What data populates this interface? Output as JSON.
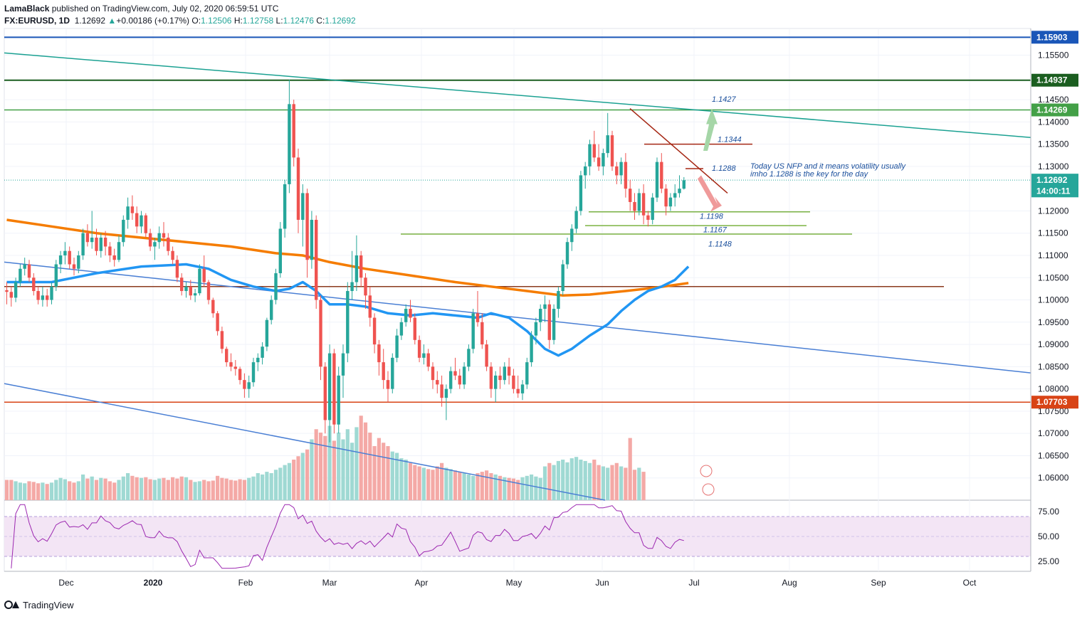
{
  "header": {
    "author": "LamaBlack",
    "published": "published on TradingView.com, July 02, 2020 06:59:51 UTC",
    "symbol": "FX:EURUSD, 1D",
    "last": "1.12692",
    "change": "+0.00186 (+0.17%)",
    "o_label": "O:",
    "o": "1.12506",
    "h_label": "H:",
    "h": "1.12758",
    "l_label": "L:",
    "l": "1.12476",
    "c_label": "C:",
    "c": "1.12692"
  },
  "footer": {
    "brand": "TradingView"
  },
  "colors": {
    "up": "#26a69a",
    "down": "#ef5350",
    "ma_fast": "#2196f3",
    "ma_slow": "#f57c00",
    "rsi": "#9c27b0",
    "rsi_band": "#f3e5f5",
    "trend_teal": "#1ba192",
    "trend_blue": "#4a7fd4",
    "level_green": "#2e7d32",
    "level_red": "#b23c17",
    "top_blue": "#1a56b8"
  },
  "chart_data": {
    "type": "candlestick",
    "price_ylim": [
      1.055,
      1.161
    ],
    "x_tick_labels": [
      "Dec",
      "2020",
      "Feb",
      "Mar",
      "Apr",
      "May",
      "Jun",
      "Jul",
      "Aug",
      "Sep",
      "Oct"
    ],
    "y_tick_labels": [
      "1.15500",
      "1.14500",
      "1.14000",
      "1.13500",
      "1.13000",
      "1.12000",
      "1.11500",
      "1.11000",
      "1.10500",
      "1.10000",
      "1.09500",
      "1.09000",
      "1.08500",
      "1.08000",
      "1.07500",
      "1.07000",
      "1.06500",
      "1.06000"
    ],
    "price_badges": [
      {
        "label": "1.15903",
        "value": 1.15903,
        "color": "#1a56b8"
      },
      {
        "label": "1.14937",
        "value": 1.14937,
        "color": "#1b5e20"
      },
      {
        "label": "1.14269",
        "value": 1.14269,
        "color": "#43a047"
      },
      {
        "label": "1.12692",
        "value": 1.12692,
        "color": "#26a69a"
      },
      {
        "label": "14:00:11",
        "value": 1.1245,
        "color": "#26a69a"
      },
      {
        "label": "1.07703",
        "value": 1.07703,
        "color": "#d84315"
      }
    ],
    "annotations": {
      "levels": [
        "1.1427",
        "1.1344",
        "1.1288",
        "1.1198",
        "1.1167",
        "1.1148"
      ],
      "note_line1": "Today US NFP and it means volatility usually",
      "note_line2": "imho 1.1288 is the key for the day"
    },
    "rsi": {
      "ylim": [
        15,
        85
      ],
      "tick_labels": [
        "75.00",
        "50.00",
        "25.00"
      ],
      "band": [
        30,
        70
      ]
    },
    "month_starts": [
      0,
      23,
      44,
      64,
      86,
      108,
      129,
      150
    ],
    "candles": [
      [
        1.1022,
        1.104,
        1.099,
        1.1018
      ],
      [
        1.1018,
        1.103,
        1.0985,
        1.1005
      ],
      [
        1.1005,
        1.105,
        1.0995,
        1.104
      ],
      [
        1.104,
        1.108,
        1.103,
        1.107
      ],
      [
        1.107,
        1.1095,
        1.1055,
        1.108
      ],
      [
        1.108,
        1.109,
        1.104,
        1.105
      ],
      [
        1.105,
        1.106,
        1.101,
        1.102
      ],
      [
        1.102,
        1.103,
        1.099,
        1.1
      ],
      [
        1.1,
        1.103,
        1.0985,
        1.101
      ],
      [
        1.101,
        1.1025,
        1.0985,
        1.1
      ],
      [
        1.1,
        1.104,
        1.099,
        1.103
      ],
      [
        1.103,
        1.109,
        1.102,
        1.108
      ],
      [
        1.108,
        1.111,
        1.106,
        1.11
      ],
      [
        1.11,
        1.113,
        1.108,
        1.111
      ],
      [
        1.111,
        1.112,
        1.107,
        1.108
      ],
      [
        1.108,
        1.1095,
        1.1055,
        1.107
      ],
      [
        1.107,
        1.111,
        1.106,
        1.11
      ],
      [
        1.11,
        1.116,
        1.109,
        1.115
      ],
      [
        1.115,
        1.117,
        1.112,
        1.113
      ],
      [
        1.113,
        1.12,
        1.1115,
        1.114
      ],
      [
        1.114,
        1.116,
        1.11,
        1.111
      ],
      [
        1.111,
        1.115,
        1.1095,
        1.114
      ],
      [
        1.114,
        1.1155,
        1.11,
        1.112
      ],
      [
        1.112,
        1.113,
        1.1085,
        1.11
      ],
      [
        1.11,
        1.1115,
        1.1075,
        1.109
      ],
      [
        1.109,
        1.1145,
        1.1085,
        1.113
      ],
      [
        1.113,
        1.119,
        1.112,
        1.118
      ],
      [
        1.118,
        1.123,
        1.116,
        1.121
      ],
      [
        1.121,
        1.1235,
        1.118,
        1.1195
      ],
      [
        1.1195,
        1.121,
        1.115,
        1.1165
      ],
      [
        1.1165,
        1.12,
        1.115,
        1.119
      ],
      [
        1.119,
        1.1195,
        1.114,
        1.115
      ],
      [
        1.115,
        1.116,
        1.111,
        1.112
      ],
      [
        1.112,
        1.114,
        1.109,
        1.113
      ],
      [
        1.113,
        1.1165,
        1.1115,
        1.115
      ],
      [
        1.115,
        1.1175,
        1.112,
        1.114
      ],
      [
        1.114,
        1.115,
        1.11,
        1.111
      ],
      [
        1.111,
        1.112,
        1.108,
        1.109
      ],
      [
        1.109,
        1.11,
        1.104,
        1.105
      ],
      [
        1.105,
        1.106,
        1.101,
        1.102
      ],
      [
        1.102,
        1.104,
        1.1005,
        1.103
      ],
      [
        1.103,
        1.1045,
        1.1,
        1.101
      ],
      [
        1.101,
        1.1025,
        1.0995,
        1.1015
      ],
      [
        1.1015,
        1.108,
        1.101,
        1.107
      ],
      [
        1.107,
        1.11,
        1.103,
        1.104
      ],
      [
        1.104,
        1.1045,
        1.099,
        1.1
      ],
      [
        1.1,
        1.1005,
        1.096,
        1.097
      ],
      [
        1.097,
        1.0975,
        1.092,
        1.093
      ],
      [
        1.093,
        1.094,
        1.088,
        1.089
      ],
      [
        1.089,
        1.0895,
        1.085,
        1.086
      ],
      [
        1.086,
        1.088,
        1.084,
        1.085
      ],
      [
        1.085,
        1.0865,
        1.083,
        1.0845
      ],
      [
        1.0845,
        1.085,
        1.081,
        1.082
      ],
      [
        1.082,
        1.0835,
        1.078,
        1.08
      ],
      [
        1.08,
        1.083,
        1.078,
        1.0815
      ],
      [
        1.0815,
        1.087,
        1.0805,
        1.086
      ],
      [
        1.086,
        1.088,
        1.084,
        1.087
      ],
      [
        1.087,
        1.0905,
        1.0855,
        1.0895
      ],
      [
        1.0895,
        1.096,
        1.0885,
        1.0955
      ],
      [
        1.0955,
        1.101,
        1.0945,
        1.1
      ],
      [
        1.1,
        1.107,
        1.099,
        1.106
      ],
      [
        1.106,
        1.1175,
        1.105,
        1.116
      ],
      [
        1.116,
        1.127,
        1.114,
        1.126
      ],
      [
        1.126,
        1.1495,
        1.124,
        1.144
      ],
      [
        1.144,
        1.145,
        1.13,
        1.132
      ],
      [
        1.132,
        1.134,
        1.115,
        1.118
      ],
      [
        1.118,
        1.126,
        1.112,
        1.124
      ],
      [
        1.124,
        1.125,
        1.105,
        1.109
      ],
      [
        1.109,
        1.12,
        1.107,
        1.118
      ],
      [
        1.118,
        1.119,
        1.098,
        1.1
      ],
      [
        1.1,
        1.101,
        1.082,
        1.085
      ],
      [
        1.085,
        1.086,
        1.07,
        1.073
      ],
      [
        1.073,
        1.09,
        1.068,
        1.088
      ],
      [
        1.088,
        1.089,
        1.07,
        1.072
      ],
      [
        1.072,
        1.085,
        1.07,
        1.083
      ],
      [
        1.083,
        1.09,
        1.078,
        1.088
      ],
      [
        1.088,
        1.104,
        1.086,
        1.102
      ],
      [
        1.102,
        1.111,
        1.1,
        1.104
      ],
      [
        1.104,
        1.1145,
        1.102,
        1.11
      ],
      [
        1.11,
        1.111,
        1.103,
        1.105
      ],
      [
        1.105,
        1.106,
        1.098,
        1.101
      ],
      [
        1.101,
        1.103,
        1.094,
        1.096
      ],
      [
        1.096,
        1.097,
        1.088,
        1.09
      ],
      [
        1.09,
        1.091,
        1.083,
        1.086
      ],
      [
        1.086,
        1.089,
        1.08,
        1.082
      ],
      [
        1.082,
        1.084,
        1.077,
        1.08
      ],
      [
        1.08,
        1.088,
        1.079,
        1.087
      ],
      [
        1.087,
        1.0935,
        1.086,
        1.092
      ],
      [
        1.092,
        1.096,
        1.091,
        1.095
      ],
      [
        1.095,
        1.099,
        1.094,
        1.098
      ],
      [
        1.098,
        1.1,
        1.095,
        1.096
      ],
      [
        1.096,
        1.097,
        1.09,
        1.091
      ],
      [
        1.091,
        1.092,
        1.086,
        1.087
      ],
      [
        1.087,
        1.09,
        1.0855,
        1.088
      ],
      [
        1.088,
        1.089,
        1.084,
        1.085
      ],
      [
        1.085,
        1.086,
        1.08,
        1.082
      ],
      [
        1.082,
        1.084,
        1.079,
        1.081
      ],
      [
        1.081,
        1.083,
        1.076,
        1.078
      ],
      [
        1.078,
        1.081,
        1.073,
        1.08
      ],
      [
        1.08,
        1.085,
        1.079,
        1.084
      ],
      [
        1.084,
        1.087,
        1.082,
        1.083
      ],
      [
        1.083,
        1.0845,
        1.08,
        1.081
      ],
      [
        1.081,
        1.086,
        1.08,
        1.085
      ],
      [
        1.085,
        1.09,
        1.084,
        1.089
      ],
      [
        1.089,
        1.098,
        1.088,
        1.097
      ],
      [
        1.097,
        1.102,
        1.094,
        1.095
      ],
      [
        1.095,
        1.097,
        1.089,
        1.09
      ],
      [
        1.09,
        1.091,
        1.084,
        1.085
      ],
      [
        1.085,
        1.086,
        1.078,
        1.08
      ],
      [
        1.08,
        1.084,
        1.077,
        1.083
      ],
      [
        1.083,
        1.085,
        1.08,
        1.082
      ],
      [
        1.082,
        1.086,
        1.081,
        1.085
      ],
      [
        1.085,
        1.087,
        1.081,
        1.083
      ],
      [
        1.083,
        1.0845,
        1.079,
        1.08
      ],
      [
        1.08,
        1.083,
        1.078,
        1.079
      ],
      [
        1.079,
        1.082,
        1.0775,
        1.081
      ],
      [
        1.081,
        1.087,
        1.08,
        1.086
      ],
      [
        1.086,
        1.093,
        1.085,
        1.092
      ],
      [
        1.092,
        1.096,
        1.09,
        1.095
      ],
      [
        1.095,
        1.099,
        1.093,
        1.098
      ],
      [
        1.098,
        1.101,
        1.095,
        1.099
      ],
      [
        1.099,
        1.1,
        1.089,
        1.091
      ],
      [
        1.091,
        1.099,
        1.09,
        1.098
      ],
      [
        1.098,
        1.103,
        1.096,
        1.102
      ],
      [
        1.102,
        1.109,
        1.101,
        1.108
      ],
      [
        1.108,
        1.114,
        1.107,
        1.113
      ],
      [
        1.113,
        1.117,
        1.111,
        1.116
      ],
      [
        1.116,
        1.121,
        1.115,
        1.12
      ],
      [
        1.12,
        1.129,
        1.119,
        1.128
      ],
      [
        1.128,
        1.131,
        1.125,
        1.13
      ],
      [
        1.13,
        1.136,
        1.128,
        1.135
      ],
      [
        1.135,
        1.138,
        1.131,
        1.132
      ],
      [
        1.132,
        1.135,
        1.129,
        1.13
      ],
      [
        1.13,
        1.134,
        1.128,
        1.133
      ],
      [
        1.133,
        1.142,
        1.132,
        1.137
      ],
      [
        1.137,
        1.138,
        1.129,
        1.13
      ],
      [
        1.13,
        1.131,
        1.126,
        1.128
      ],
      [
        1.128,
        1.132,
        1.126,
        1.131
      ],
      [
        1.131,
        1.133,
        1.123,
        1.125
      ],
      [
        1.125,
        1.127,
        1.12,
        1.122
      ],
      [
        1.122,
        1.124,
        1.118,
        1.12
      ],
      [
        1.12,
        1.125,
        1.119,
        1.124
      ],
      [
        1.124,
        1.126,
        1.117,
        1.119
      ],
      [
        1.119,
        1.12,
        1.1165,
        1.118
      ],
      [
        1.118,
        1.124,
        1.117,
        1.123
      ],
      [
        1.123,
        1.132,
        1.122,
        1.131
      ],
      [
        1.131,
        1.133,
        1.124,
        1.125
      ],
      [
        1.125,
        1.126,
        1.119,
        1.121
      ],
      [
        1.121,
        1.124,
        1.12,
        1.123
      ],
      [
        1.123,
        1.126,
        1.121,
        1.124
      ],
      [
        1.124,
        1.128,
        1.123,
        1.125
      ],
      [
        1.125,
        1.1276,
        1.1248,
        1.1269
      ]
    ],
    "ma_fast": [
      [
        0,
        1.104
      ],
      [
        10,
        1.104
      ],
      [
        20,
        1.106
      ],
      [
        30,
        1.1075
      ],
      [
        40,
        1.108
      ],
      [
        45,
        1.107
      ],
      [
        50,
        1.1045
      ],
      [
        55,
        1.103
      ],
      [
        60,
        1.102
      ],
      [
        63,
        1.1025
      ],
      [
        66,
        1.104
      ],
      [
        69,
        1.102
      ],
      [
        72,
        1.099
      ],
      [
        76,
        1.099
      ],
      [
        80,
        1.0985
      ],
      [
        85,
        1.097
      ],
      [
        90,
        1.0965
      ],
      [
        95,
        1.097
      ],
      [
        100,
        1.0965
      ],
      [
        105,
        1.096
      ],
      [
        108,
        1.097
      ],
      [
        112,
        1.096
      ],
      [
        116,
        1.093
      ],
      [
        120,
        1.089
      ],
      [
        123,
        1.0875
      ],
      [
        126,
        1.089
      ],
      [
        130,
        1.092
      ],
      [
        134,
        1.0945
      ],
      [
        137,
        1.0975
      ],
      [
        140,
        1.1
      ],
      [
        143,
        1.102
      ],
      [
        146,
        1.103
      ],
      [
        149,
        1.1045
      ],
      [
        152,
        1.1075
      ]
    ],
    "ma_slow": [
      [
        0,
        1.118
      ],
      [
        10,
        1.1165
      ],
      [
        20,
        1.115
      ],
      [
        30,
        1.114
      ],
      [
        40,
        1.113
      ],
      [
        50,
        1.112
      ],
      [
        60,
        1.1105
      ],
      [
        66,
        1.11
      ],
      [
        72,
        1.1085
      ],
      [
        80,
        1.107
      ],
      [
        90,
        1.1055
      ],
      [
        100,
        1.104
      ],
      [
        108,
        1.103
      ],
      [
        116,
        1.102
      ],
      [
        124,
        1.101
      ],
      [
        130,
        1.1012
      ],
      [
        138,
        1.102
      ],
      [
        145,
        1.1028
      ],
      [
        152,
        1.1038
      ]
    ],
    "volume": [
      [
        0.3,
        0.3,
        0.28,
        0.26,
        0.25,
        0.28,
        0.27,
        0.25,
        0.26,
        0.24,
        0.26,
        0.3,
        0.33,
        0.31,
        0.28,
        0.26,
        0.28,
        0.38,
        0.32,
        0.35
      ],
      [
        0.3,
        0.33,
        0.32,
        0.28,
        0.26,
        0.3,
        0.35,
        0.4,
        0.36,
        0.34,
        0.33,
        0.34,
        0.31,
        0.3,
        0.32,
        0.33,
        0.3,
        0.34,
        0.32,
        0.35
      ],
      [
        0.34,
        0.3,
        0.27,
        0.28,
        0.3,
        0.28,
        0.29,
        0.36,
        0.33,
        0.32,
        0.3,
        0.29,
        0.31,
        0.3,
        0.33,
        0.35,
        0.4,
        0.38,
        0.42,
        0.4
      ],
      [
        0.45,
        0.48,
        0.52,
        0.55,
        0.6,
        0.65,
        0.7,
        0.75,
        0.9,
        1.05,
        1.0,
        0.95,
        1.1,
        0.88,
        1.0,
        0.9,
        1.05,
        0.85,
        1.08,
        1.25
      ],
      [
        1.15,
        1.0,
        0.8,
        0.92,
        0.85,
        0.8,
        0.72,
        0.7,
        0.62,
        0.6,
        0.55,
        0.52,
        0.5,
        0.48,
        0.46,
        0.45,
        0.5,
        0.55,
        0.48,
        0.46
      ],
      [
        0.44,
        0.42,
        0.4,
        0.38,
        0.36,
        0.4,
        0.42,
        0.44,
        0.4,
        0.38,
        0.36,
        0.34,
        0.33,
        0.32,
        0.3,
        0.34,
        0.36,
        0.38,
        0.35,
        0.33
      ],
      [
        0.5,
        0.55,
        0.52,
        0.58,
        0.6,
        0.56,
        0.62,
        0.64,
        0.6,
        0.58,
        0.55,
        0.6,
        0.52,
        0.5,
        0.48,
        0.52,
        0.55,
        0.5,
        0.48,
        0.92
      ],
      [
        0.45,
        0.48,
        0.42
      ]
    ]
  }
}
